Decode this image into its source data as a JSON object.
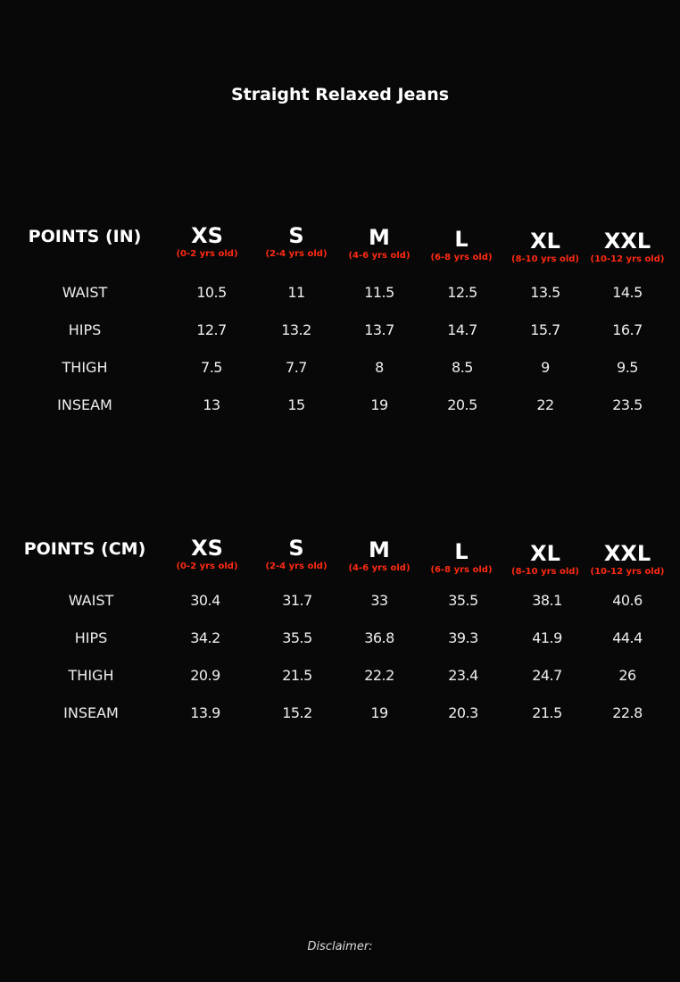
{
  "title": "Straight Relaxed Jeans",
  "accent_color": "#ff2a12",
  "sizes": [
    {
      "label": "XS",
      "age": "(0-2 yrs old)"
    },
    {
      "label": "S",
      "age": "(2-4 yrs old)"
    },
    {
      "label": "M",
      "age": "(4-6 yrs old)"
    },
    {
      "label": "L",
      "age": "(6-8 yrs old)"
    },
    {
      "label": "XL",
      "age": "(8-10 yrs old)"
    },
    {
      "label": "XXL",
      "age": "(10-12 yrs old)"
    }
  ],
  "tables": [
    {
      "header": "POINTS (IN)",
      "rows": [
        {
          "label": "WAIST",
          "values": [
            "10.5",
            "11",
            "11.5",
            "12.5",
            "13.5",
            "14.5"
          ]
        },
        {
          "label": "HIPS",
          "values": [
            "12.7",
            "13.2",
            "13.7",
            "14.7",
            "15.7",
            "16.7"
          ]
        },
        {
          "label": "THIGH",
          "values": [
            "7.5",
            "7.7",
            "8",
            "8.5",
            "9",
            "9.5"
          ]
        },
        {
          "label": "INSEAM",
          "values": [
            "13",
            "15",
            "19",
            "20.5",
            "22",
            "23.5"
          ]
        }
      ]
    },
    {
      "header": "POINTS (CM)",
      "rows": [
        {
          "label": "WAIST",
          "values": [
            "30.4",
            "31.7",
            "33",
            "35.5",
            "38.1",
            "40.6"
          ]
        },
        {
          "label": "HIPS",
          "values": [
            "34.2",
            "35.5",
            "36.8",
            "39.3",
            "41.9",
            "44.4"
          ]
        },
        {
          "label": "THIGH",
          "values": [
            "20.9",
            "21.5",
            "22.2",
            "23.4",
            "24.7",
            "26"
          ]
        },
        {
          "label": "INSEAM",
          "values": [
            "13.9",
            "15.2",
            "19",
            "20.3",
            "21.5",
            "22.8"
          ]
        }
      ]
    }
  ],
  "disclaimer": "Disclaimer:"
}
